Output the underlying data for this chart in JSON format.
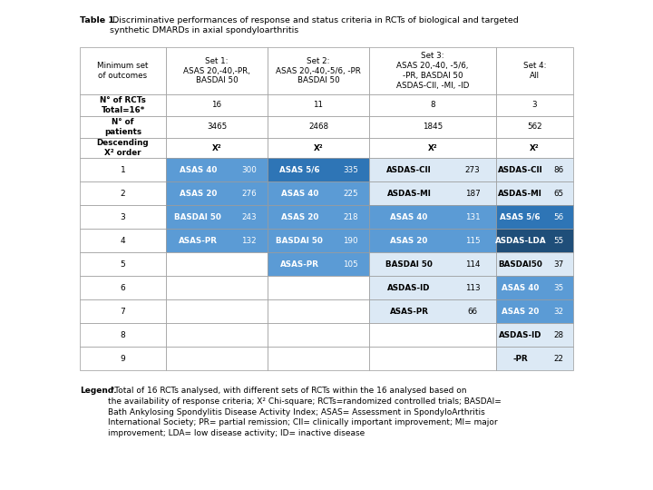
{
  "title_bold": "Table 1.",
  "title_rest": " Discriminative performances of response and status criteria in RCTs of biological and targeted\nsynthetic DMARDs in axial spondyloarthritis",
  "col_headers": [
    "Minimum set\nof outcomes",
    "Set 1:\nASAS 20,-40,-PR,\nBASDAI 50",
    "Set 2:\nASAS 20,-40,-5/6, -PR\nBASDAI 50",
    "Set 3:\nASAS 20,-40, -5/6,\n-PR, BASDAI 50\nASDAS-CII, -MI, -ID",
    "Set 4:\nAll"
  ],
  "info_rows": [
    [
      "N° of RCTs\nTotal=16*",
      "16",
      "11",
      "8",
      "3"
    ],
    [
      "N° of\npatients",
      "3465",
      "2468",
      "1845",
      "562"
    ]
  ],
  "data_rows": [
    [
      1,
      "ASAS 40",
      300,
      "ASAS 5/6",
      335,
      "ASDAS-CII",
      273,
      "ASDAS-CII",
      86
    ],
    [
      2,
      "ASAS 20",
      276,
      "ASAS 40",
      225,
      "ASDAS-MI",
      187,
      "ASDAS-MI",
      65
    ],
    [
      3,
      "BASDAI 50",
      243,
      "ASAS 20",
      218,
      "ASAS 40",
      131,
      "ASAS 5/6",
      56
    ],
    [
      4,
      "ASAS-PR",
      132,
      "BASDAI 50",
      190,
      "ASAS 20",
      115,
      "ASDAS-LDA",
      55
    ],
    [
      5,
      "",
      "",
      "ASAS-PR",
      105,
      "BASDAI 50",
      114,
      "BASDAI50",
      37
    ],
    [
      6,
      "",
      "",
      "",
      "",
      "ASDAS-ID",
      113,
      "ASAS 40",
      35
    ],
    [
      7,
      "",
      "",
      "",
      "",
      "ASAS-PR",
      66,
      "ASAS 20",
      32
    ],
    [
      8,
      "",
      "",
      "",
      "",
      "",
      "",
      "ASDAS-ID",
      28
    ],
    [
      9,
      "",
      "",
      "",
      "",
      "",
      "",
      "-PR",
      22
    ]
  ],
  "color_map": {
    "1_1": "#5b9bd5",
    "1_2": "#2e75b6",
    "1_3": "#dce9f5",
    "1_4": "#dce9f5",
    "2_1": "#5b9bd5",
    "2_2": "#5b9bd5",
    "2_3": "#dce9f5",
    "2_4": "#dce9f5",
    "3_1": "#5b9bd5",
    "3_2": "#5b9bd5",
    "3_3": "#5b9bd5",
    "3_4": "#2e75b6",
    "4_1": "#5b9bd5",
    "4_2": "#5b9bd5",
    "4_3": "#5b9bd5",
    "4_4": "#1f4e79",
    "5_2": "#5b9bd5",
    "5_3": "#dce9f5",
    "5_4": "#dce9f5",
    "6_3": "#dce9f5",
    "6_4": "#5b9bd5",
    "7_3": "#dce9f5",
    "7_4": "#5b9bd5",
    "8_4": "#dce9f5",
    "9_4": "#dce9f5"
  },
  "legend_bold": "Legend.",
  "legend_rest": " *Total of 16 RCTs analysed, with different sets of RCTs within the 16 analysed based on\nthe availability of response criteria; X² Chi-square; RCTs=randomized controlled trials; BASDAI=\nBath Ankylosing Spondylitis Disease Activity Index; ASAS= Assessment in SpondyloArthritis\nInternational Society; PR= partial remission; CII= clinically important improvement; MI= major\nimprovement; LDA= low disease activity; ID= inactive disease"
}
